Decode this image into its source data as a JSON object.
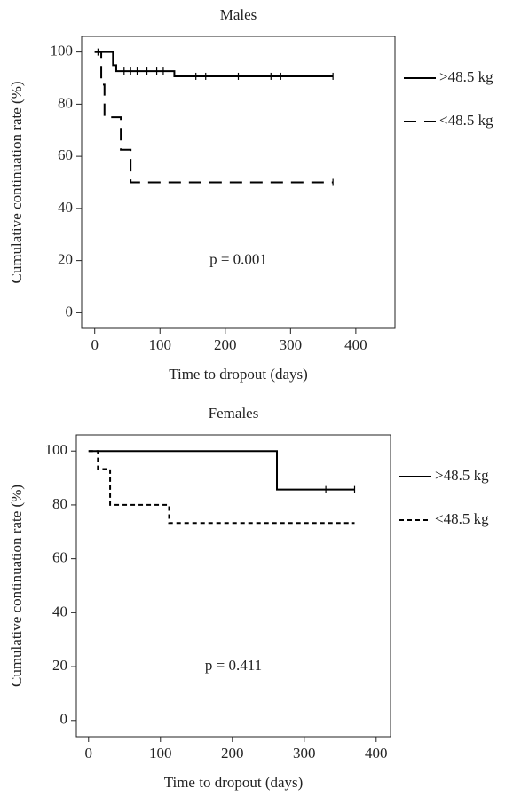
{
  "chart_data": [
    {
      "type": "step",
      "title": "Males",
      "x_label": "Time to dropout (days)",
      "y_label": "Cumulative continuation rate (%)",
      "annotation": "p = 0.001",
      "legend": "right",
      "xlim": [
        -20,
        460
      ],
      "ylim": [
        -6,
        106
      ],
      "xticks": [
        0,
        100,
        200,
        300,
        400
      ],
      "yticks": [
        0,
        20,
        40,
        60,
        80,
        100
      ],
      "series": [
        {
          "name": ">48.5 kg",
          "color": "#000000",
          "dash": "solid",
          "x": [
            0,
            28,
            33,
            122,
            365
          ],
          "values": [
            100,
            95,
            92.7,
            90.7,
            90.7
          ],
          "censor_x": [
            5,
            45,
            55,
            65,
            80,
            95,
            105,
            155,
            170,
            220,
            270,
            285,
            365
          ],
          "censor_values": [
            100,
            92.7,
            92.7,
            92.7,
            92.7,
            92.7,
            92.7,
            90.7,
            90.7,
            90.7,
            90.7,
            90.7,
            90.7
          ]
        },
        {
          "name": "<48.5 kg",
          "color": "#000000",
          "dash": "long",
          "x": [
            0,
            10,
            15,
            40,
            55,
            365
          ],
          "values": [
            100,
            87.5,
            75,
            62.5,
            50,
            50
          ],
          "censor_x": [
            365
          ],
          "censor_values": [
            50
          ]
        }
      ]
    },
    {
      "type": "step",
      "title": "Females",
      "x_label": "Time to dropout (days)",
      "y_label": "Cumulative continuation rate (%)",
      "annotation": "p = 0.411",
      "legend": "right",
      "xlim": [
        -17,
        420
      ],
      "ylim": [
        -6,
        106
      ],
      "xticks": [
        0,
        100,
        200,
        300,
        400
      ],
      "yticks": [
        0,
        20,
        40,
        60,
        80,
        100
      ],
      "series": [
        {
          "name": ">48.5 kg",
          "color": "#000000",
          "dash": "solid",
          "x": [
            0,
            262,
            370
          ],
          "values": [
            100,
            85.7,
            85.7
          ],
          "censor_x": [
            330,
            370
          ],
          "censor_values": [
            85.7,
            85.7
          ]
        },
        {
          "name": "<48.5 kg",
          "color": "#000000",
          "dash": "short",
          "x": [
            0,
            13,
            30,
            112,
            370
          ],
          "values": [
            100,
            93.3,
            80,
            73.3,
            73.3
          ],
          "censor_x": [],
          "censor_values": []
        }
      ]
    }
  ]
}
